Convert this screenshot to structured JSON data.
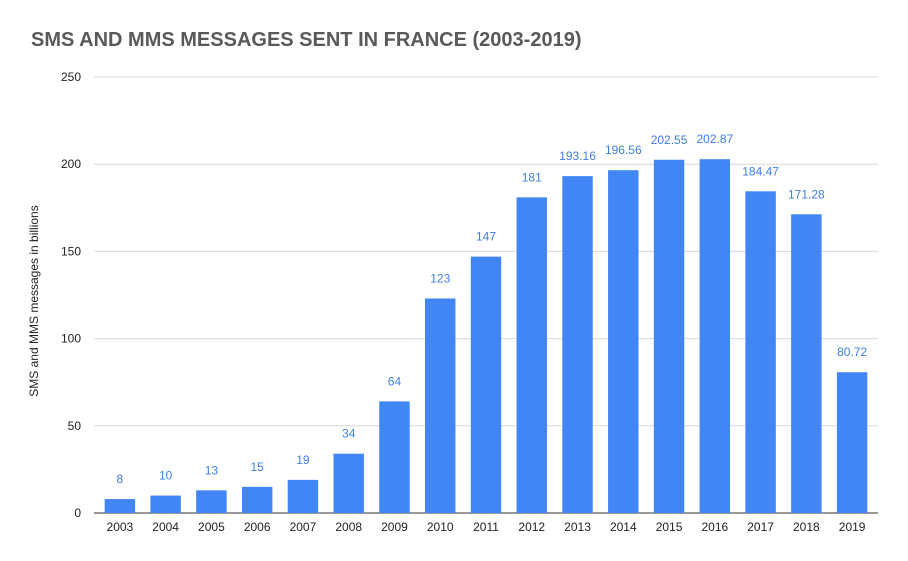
{
  "chart_data": {
    "type": "bar",
    "title": "SMS AND MMS MESSAGES SENT IN FRANCE (2003-2019)",
    "xlabel": "",
    "ylabel": "SMS and MMS messages in billions",
    "ylim": [
      0,
      250
    ],
    "yticks": [
      0,
      50,
      100,
      150,
      200,
      250
    ],
    "grid": true,
    "bar_color": "#4285f4",
    "label_color": "#3f7ee8",
    "categories": [
      "2003",
      "2004",
      "2005",
      "2006",
      "2007",
      "2008",
      "2009",
      "2010",
      "2011",
      "2012",
      "2013",
      "2014",
      "2015",
      "2016",
      "2017",
      "2018",
      "2019"
    ],
    "values": [
      8,
      10,
      13,
      15,
      19,
      34,
      64,
      123,
      147,
      181,
      193.16,
      196.56,
      202.55,
      202.87,
      184.47,
      171.28,
      80.72
    ],
    "data_labels": [
      "8",
      "10",
      "13",
      "15",
      "19",
      "34",
      "64",
      "123",
      "147",
      "181",
      "193.16",
      "196.56",
      "202.55",
      "202.87",
      "184.47",
      "171.28",
      "80.72"
    ]
  }
}
